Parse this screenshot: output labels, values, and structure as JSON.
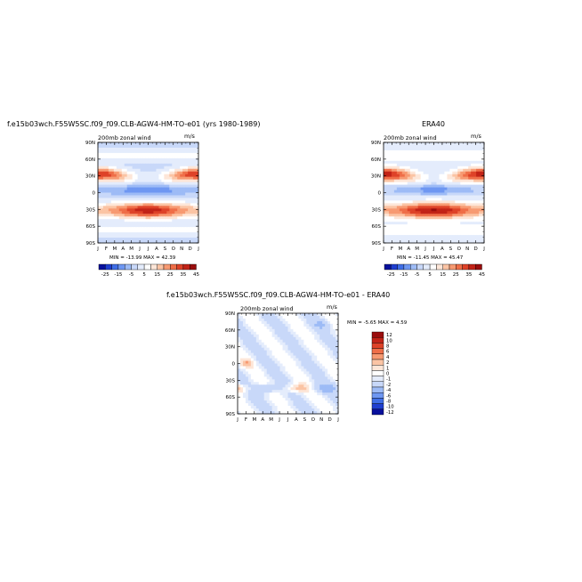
{
  "chart_data": [
    {
      "type": "heatmap",
      "title": "f.e15b03wch.F55W5SC.f09_f09.CLB-AGW4-HM-TO-e01 (yrs 1980-1989)",
      "subtitle_left": "200mb zonal wind",
      "units": "m/s",
      "min_max_label": "MIN = -13.99  MAX =  42.39",
      "x_tick_labels": [
        "J",
        "F",
        "M",
        "A",
        "M",
        "J",
        "J",
        "A",
        "S",
        "O",
        "N",
        "D",
        "J"
      ],
      "y_tick_labels": [
        "90N",
        "60N",
        "30N",
        "0",
        "30S",
        "60S",
        "90S"
      ],
      "colorbar_labels": [
        "-25",
        "-15",
        "-5",
        "5",
        "15",
        "25",
        "35",
        "45"
      ],
      "colorbar_colors": [
        "#08109c",
        "#1f3fd0",
        "#3f6ee6",
        "#6e97f2",
        "#9dbbf6",
        "#c8d8f9",
        "#e4ecfc",
        "#ffffff",
        "#fde6d8",
        "#fbc4a4",
        "#f79a72",
        "#ef6e48",
        "#de4228",
        "#c22317",
        "#9a0d0d"
      ],
      "colorbar_orientation": "horizontal"
    },
    {
      "type": "heatmap",
      "title": "ERA40",
      "subtitle_left": "200mb zonal wind",
      "units": "m/s",
      "min_max_label": "MIN = -11.45  MAX =  45.47",
      "x_tick_labels": [
        "J",
        "F",
        "M",
        "A",
        "M",
        "J",
        "J",
        "A",
        "S",
        "O",
        "N",
        "D",
        "J"
      ],
      "y_tick_labels": [
        "90N",
        "60N",
        "30N",
        "0",
        "30S",
        "60S",
        "90S"
      ],
      "colorbar_labels": [
        "-25",
        "-15",
        "-5",
        "5",
        "15",
        "25",
        "35",
        "45"
      ],
      "colorbar_orientation": "horizontal"
    },
    {
      "type": "heatmap",
      "title": "f.e15b03wch.F55W5SC.f09_f09.CLB-AGW4-HM-TO-e01 - ERA40",
      "subtitle_left": "200mb zonal wind",
      "units": "m/s",
      "min_max_label": "MIN = -5.65  MAX =   4.59",
      "x_tick_labels": [
        "J",
        "F",
        "M",
        "A",
        "M",
        "J",
        "J",
        "A",
        "S",
        "O",
        "N",
        "D",
        "J"
      ],
      "y_tick_labels": [
        "90N",
        "60N",
        "30N",
        "0",
        "30S",
        "60S",
        "90S"
      ],
      "colorbar_labels": [
        "12",
        "10",
        "8",
        "6",
        "4",
        "2",
        "1",
        "0",
        "-1",
        "-2",
        "-4",
        "-6",
        "-8",
        "-10",
        "-12"
      ],
      "colorbar_colors": [
        "#9a0d0d",
        "#c22317",
        "#de4228",
        "#ef6e48",
        "#f79a72",
        "#fbc4a4",
        "#fde6d8",
        "#ffffff",
        "#e4ecfc",
        "#c8d8f9",
        "#9dbbf6",
        "#6e97f2",
        "#3f6ee6",
        "#1f3fd0",
        "#08109c"
      ],
      "colorbar_orientation": "vertical"
    }
  ]
}
